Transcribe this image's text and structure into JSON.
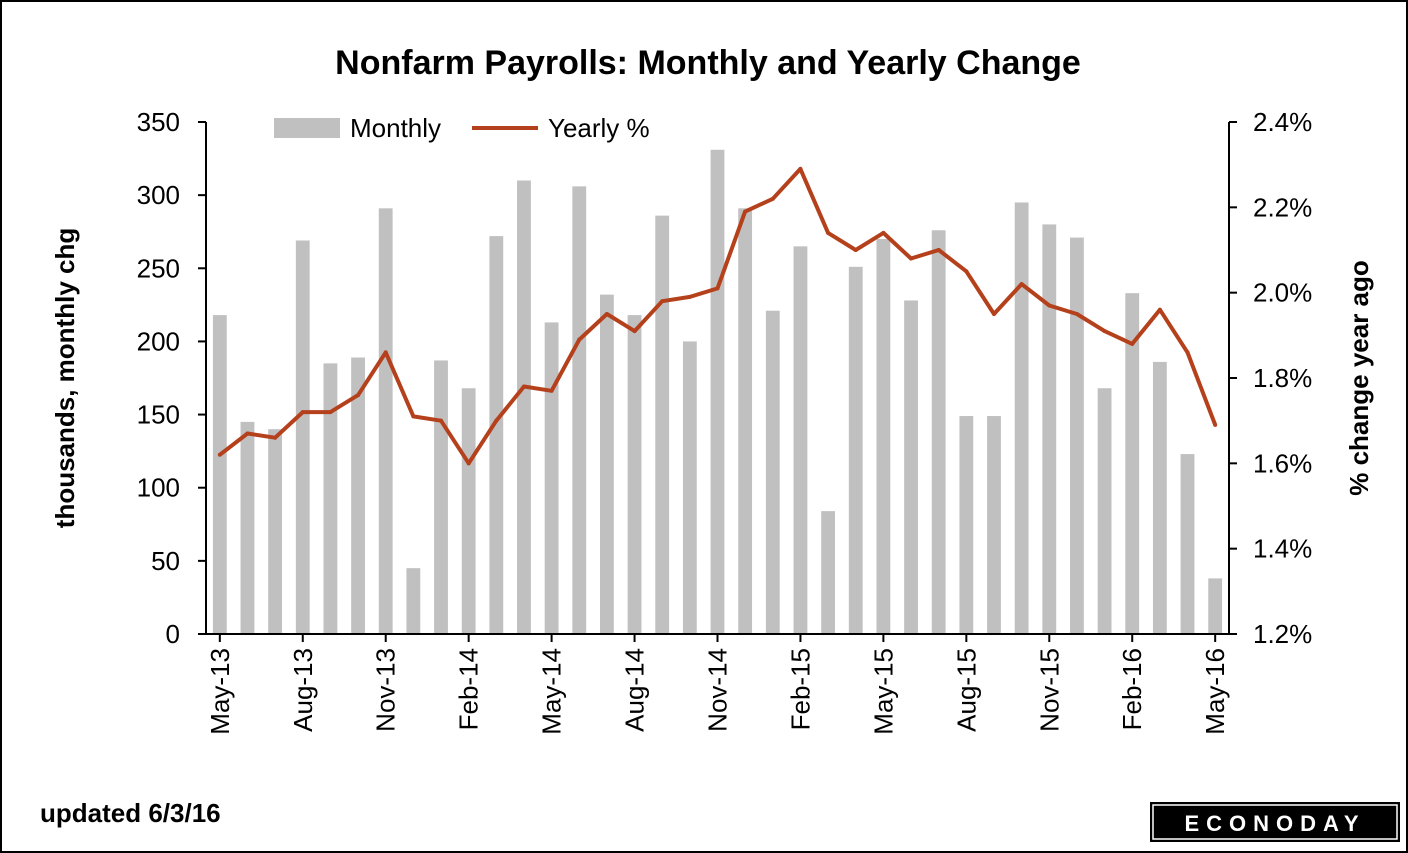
{
  "chart_data": {
    "type": "bar+line",
    "title": "Nonfarm Payrolls: Monthly and Yearly Change",
    "ylabel_left": "thousands, monthly chg",
    "ylabel_right": "% change year ago",
    "ylim_left": [
      0,
      350
    ],
    "ylim_right": [
      1.2,
      2.4
    ],
    "yticks_left": [
      "0",
      "50",
      "100",
      "150",
      "200",
      "250",
      "300",
      "350"
    ],
    "yticks_right": [
      "1.2%",
      "1.4%",
      "1.6%",
      "1.8%",
      "2.0%",
      "2.2%",
      "2.4%"
    ],
    "x_tick_labels": [
      "May-13",
      "Aug-13",
      "Nov-13",
      "Feb-14",
      "May-14",
      "Aug-14",
      "Nov-14",
      "Feb-15",
      "May-15",
      "Aug-15",
      "Nov-15",
      "Feb-16",
      "May-16"
    ],
    "x": [
      "May-13",
      "Jun-13",
      "Jul-13",
      "Aug-13",
      "Sep-13",
      "Oct-13",
      "Nov-13",
      "Dec-13",
      "Jan-14",
      "Feb-14",
      "Mar-14",
      "Apr-14",
      "May-14",
      "Jun-14",
      "Jul-14",
      "Aug-14",
      "Sep-14",
      "Oct-14",
      "Nov-14",
      "Dec-14",
      "Jan-15",
      "Feb-15",
      "Mar-15",
      "Apr-15",
      "May-15",
      "Jun-15",
      "Jul-15",
      "Aug-15",
      "Sep-15",
      "Oct-15",
      "Nov-15",
      "Dec-15",
      "Jan-16",
      "Feb-16",
      "Mar-16",
      "Apr-16",
      "May-16"
    ],
    "legend": {
      "placement": "top-left",
      "items": [
        "Monthly",
        "Yearly %"
      ]
    },
    "series": [
      {
        "name": "Monthly",
        "kind": "bar",
        "axis": "left",
        "color": "#c0c0c0",
        "values": [
          218,
          145,
          140,
          269,
          185,
          189,
          291,
          45,
          187,
          168,
          272,
          310,
          213,
          306,
          232,
          218,
          286,
          200,
          331,
          291,
          221,
          265,
          84,
          251,
          270,
          228,
          276,
          149,
          149,
          295,
          280,
          271,
          168,
          233,
          186,
          123,
          38
        ]
      },
      {
        "name": "Yearly %",
        "kind": "line",
        "axis": "right",
        "color": "#b5411c",
        "values": [
          1.62,
          1.67,
          1.66,
          1.72,
          1.72,
          1.76,
          1.86,
          1.71,
          1.7,
          1.6,
          1.7,
          1.78,
          1.77,
          1.89,
          1.95,
          1.91,
          1.98,
          1.99,
          2.01,
          2.19,
          2.22,
          2.29,
          2.14,
          2.1,
          2.14,
          2.08,
          2.1,
          2.05,
          1.95,
          2.02,
          1.97,
          1.95,
          1.91,
          1.88,
          1.96,
          1.86,
          1.69
        ]
      }
    ],
    "grid": false
  },
  "footer": {
    "updated": "updated 6/3/16",
    "logo": "ECONODAY"
  }
}
